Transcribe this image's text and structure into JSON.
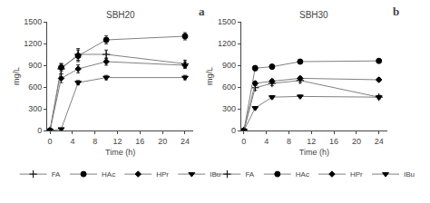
{
  "chart_data": [
    {
      "type": "line",
      "title": "SBH20",
      "annotations": [
        "a"
      ],
      "x_label": "Time (h)",
      "y_label": "mg/L",
      "x": [
        0,
        2,
        5,
        10,
        24
      ],
      "series": [
        {
          "name": "FA",
          "color": "#808080",
          "marker": "plus",
          "values": [
            0,
            850,
            1050,
            1050,
            920
          ],
          "errors": [
            0,
            70,
            80,
            60,
            50
          ]
        },
        {
          "name": "HAc",
          "color": "#808080",
          "marker": "circle",
          "values": [
            0,
            870,
            1030,
            1250,
            1300
          ],
          "errors": [
            0,
            55,
            80,
            55,
            50
          ]
        },
        {
          "name": "HPr",
          "color": "#808080",
          "marker": "diamond",
          "values": [
            0,
            720,
            850,
            950,
            900
          ],
          "errors": [
            0,
            60,
            55,
            50,
            45
          ]
        },
        {
          "name": "IBu",
          "color": "#808080",
          "marker": "triangle-down",
          "values": [
            0,
            20,
            660,
            730,
            730
          ],
          "errors": [
            0,
            5,
            30,
            30,
            30
          ]
        }
      ],
      "xlim": [
        -0.5,
        25.5
      ],
      "xticks": [
        0,
        4,
        8,
        12,
        16,
        20,
        24
      ],
      "ylim": [
        0,
        1500
      ],
      "yticks": [
        0,
        300,
        600,
        900,
        1200,
        1500
      ],
      "grid": false,
      "legend": "bottom"
    },
    {
      "type": "line",
      "title": "SBH30",
      "annotations": [
        "b"
      ],
      "x_label": "Time (h)",
      "y_label": "mg/L",
      "x": [
        0,
        2,
        5,
        10,
        24
      ],
      "series": [
        {
          "name": "FA",
          "color": "#808080",
          "marker": "plus",
          "values": [
            0,
            590,
            650,
            690,
            460
          ],
          "errors": [
            0,
            35,
            30,
            28,
            25
          ]
        },
        {
          "name": "HAc",
          "color": "#808080",
          "marker": "circle",
          "values": [
            0,
            860,
            880,
            950,
            960
          ],
          "errors": [
            0,
            35,
            28,
            28,
            22
          ]
        },
        {
          "name": "HPr",
          "color": "#808080",
          "marker": "diamond",
          "values": [
            0,
            650,
            680,
            720,
            700
          ],
          "errors": [
            0,
            30,
            28,
            22,
            22
          ]
        },
        {
          "name": "IBu",
          "color": "#808080",
          "marker": "triangle-down",
          "values": [
            0,
            310,
            460,
            470,
            460
          ],
          "errors": [
            0,
            22,
            22,
            18,
            18
          ]
        }
      ],
      "xlim": [
        -0.5,
        25.5
      ],
      "xticks": [
        0,
        4,
        8,
        12,
        16,
        20,
        24
      ],
      "ylim": [
        0,
        1500
      ],
      "yticks": [
        0,
        300,
        600,
        900,
        1200,
        1500
      ],
      "grid": false,
      "legend": "bottom"
    }
  ]
}
